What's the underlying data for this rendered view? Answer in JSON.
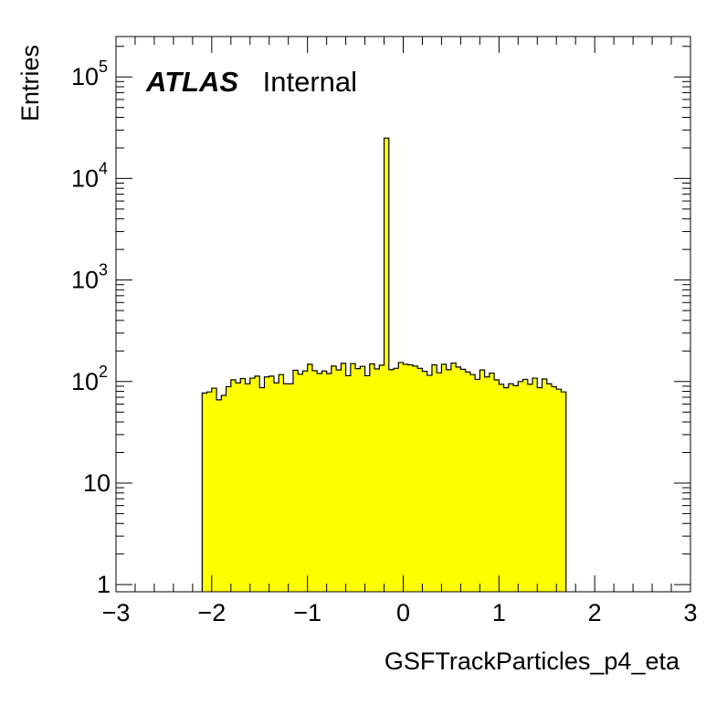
{
  "chart_data": {
    "type": "bar",
    "title": "",
    "xlabel": "GSFTrackParticles_p4_eta",
    "ylabel": "Entries",
    "xlim": [
      -3,
      3
    ],
    "ylim": [
      0.85,
      250000
    ],
    "yscale": "log",
    "grid": false,
    "legend": "none",
    "fill_color": "#ffff00",
    "line_color": "#000000",
    "annotation": {
      "bold": "ATLAS",
      "normal": "Internal"
    },
    "x_ticks": [
      {
        "value": -3,
        "label": "−3"
      },
      {
        "value": -2,
        "label": "−2"
      },
      {
        "value": -1,
        "label": "−1"
      },
      {
        "value": 0,
        "label": "0"
      },
      {
        "value": 1,
        "label": "1"
      },
      {
        "value": 2,
        "label": "2"
      },
      {
        "value": 3,
        "label": "3"
      }
    ],
    "y_ticks": [
      {
        "value": 1,
        "base": "1",
        "exp": ""
      },
      {
        "value": 10,
        "base": "10",
        "exp": ""
      },
      {
        "value": 100,
        "base": "10",
        "exp": "2"
      },
      {
        "value": 1000,
        "base": "10",
        "exp": "3"
      },
      {
        "value": 10000,
        "base": "10",
        "exp": "4"
      },
      {
        "value": 100000,
        "base": "10",
        "exp": "5"
      }
    ],
    "bin_start": -2.1,
    "bin_width": 0.05,
    "values": [
      77,
      79,
      86,
      66,
      73,
      89,
      104,
      97,
      107,
      95,
      108,
      113,
      87,
      111,
      113,
      97,
      117,
      95,
      95,
      129,
      118,
      127,
      148,
      128,
      120,
      127,
      120,
      142,
      130,
      151,
      114,
      150,
      134,
      141,
      114,
      149,
      133,
      145,
      25000,
      131,
      135,
      154,
      148,
      146,
      142,
      135,
      126,
      115,
      146,
      122,
      148,
      131,
      152,
      139,
      132,
      124,
      117,
      105,
      130,
      111,
      121,
      104,
      94,
      87,
      95,
      91,
      100,
      105,
      94,
      108,
      87,
      106,
      95,
      89,
      84
    ],
    "last_bin": 79
  }
}
